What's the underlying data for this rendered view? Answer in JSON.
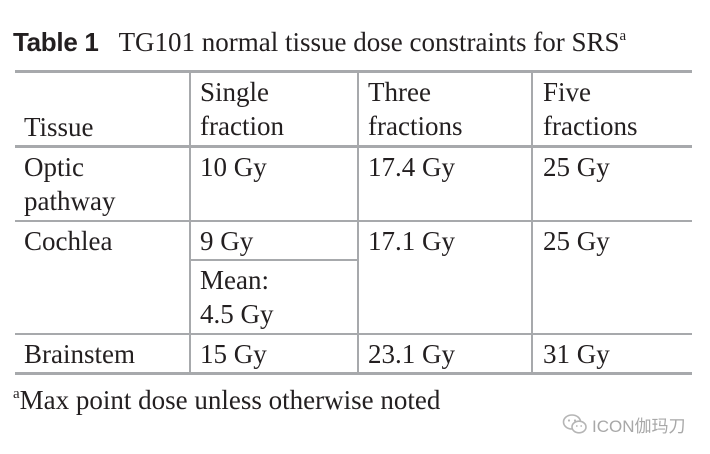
{
  "table": {
    "label": "Table 1",
    "caption": "TG101 normal tissue dose constraints for SRS",
    "caption_sup": "a",
    "headers": {
      "tissue": "Tissue",
      "single": [
        "Single",
        "fraction"
      ],
      "three": [
        "Three",
        "fractions"
      ],
      "five": [
        "Five",
        "fractions"
      ]
    },
    "rows": [
      {
        "tissue": [
          "Optic",
          "pathway"
        ],
        "single": "10 Gy",
        "three": "17.4 Gy",
        "five": "25 Gy"
      },
      {
        "tissue": "Cochlea",
        "single": "9 Gy",
        "single_mean": [
          "Mean:",
          "4.5 Gy"
        ],
        "three": "17.1 Gy",
        "five": "25 Gy"
      },
      {
        "tissue": "Brainstem",
        "single": "15 Gy",
        "three": "23.1 Gy",
        "five": "31 Gy"
      }
    ],
    "footnote_marker": "a",
    "footnote": "Max point dose unless otherwise noted"
  },
  "watermark": {
    "text": "ICON伽玛刀",
    "icon": "wechat-logo-icon"
  }
}
